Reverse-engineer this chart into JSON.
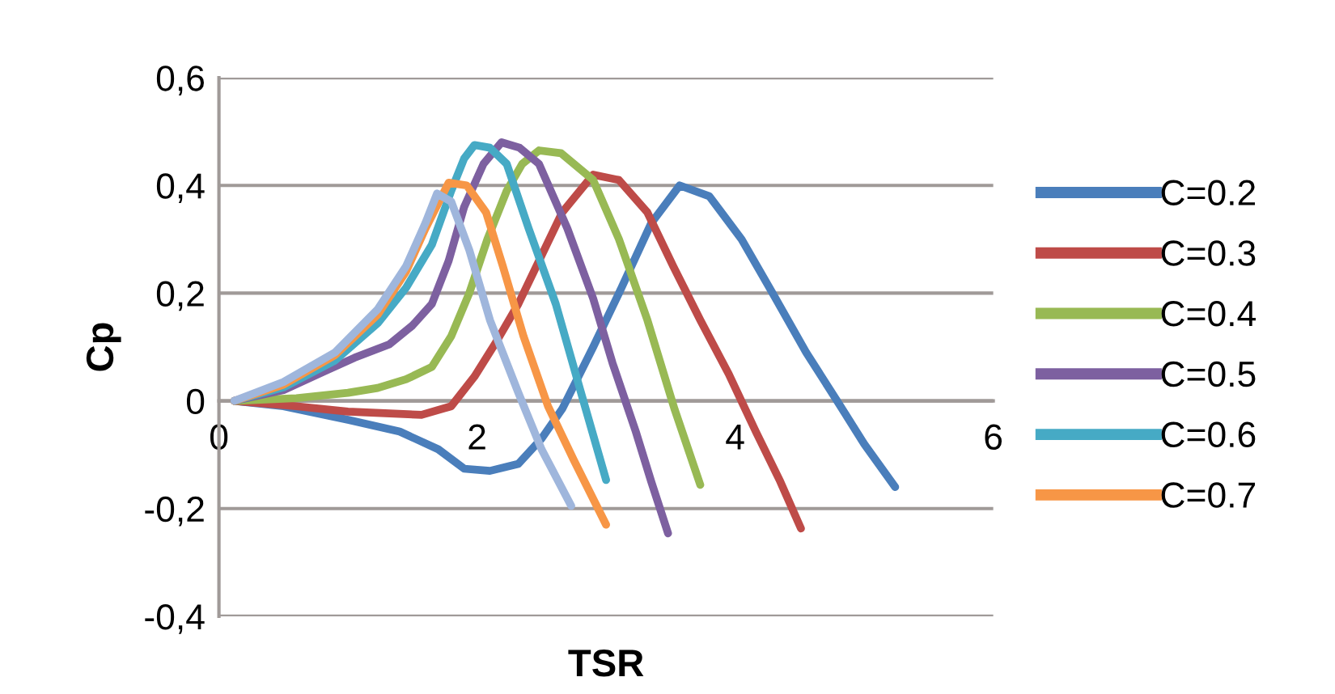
{
  "chart_data": {
    "type": "line",
    "xlabel": "TSR",
    "ylabel": "Cp",
    "xlim": [
      0,
      6
    ],
    "xticks": [
      0,
      2,
      4,
      6
    ],
    "ylim": [
      -0.4,
      0.6
    ],
    "yticks": [
      {
        "value": -0.4,
        "label": "-0,4"
      },
      {
        "value": -0.2,
        "label": "-0,2"
      },
      0,
      {
        "value": 0.2,
        "label": "0,2"
      },
      {
        "value": 0.4,
        "label": "0,4"
      },
      {
        "value": 0.6,
        "label": "0,6"
      }
    ],
    "grid": "y",
    "legend": "right",
    "marker": "none",
    "line_style": "solid",
    "series": [
      {
        "name": "C=0.2",
        "color": "#4a7ebb",
        "x": [
          0.12,
          0.5,
          1.0,
          1.4,
          1.7,
          1.9,
          2.1,
          2.32,
          2.5,
          2.66,
          2.9,
          3.1,
          3.35,
          3.57,
          3.8,
          4.05,
          4.29,
          4.55,
          4.79,
          5.0,
          5.24
        ],
        "values": [
          0,
          -0.01,
          -0.035,
          -0.057,
          -0.09,
          -0.126,
          -0.13,
          -0.117,
          -0.07,
          -0.015,
          0.1,
          0.2,
          0.33,
          0.4,
          0.38,
          0.3,
          0.2,
          0.09,
          0,
          -0.08,
          -0.16
        ]
      },
      {
        "name": "C=0.3",
        "color": "#be4b48",
        "x": [
          0.12,
          0.6,
          1.0,
          1.57,
          1.8,
          1.98,
          2.15,
          2.32,
          2.5,
          2.66,
          2.9,
          3.1,
          3.32,
          3.52,
          3.73,
          3.95,
          4.16,
          4.35,
          4.51
        ],
        "values": [
          0,
          -0.01,
          -0.02,
          -0.026,
          -0.01,
          0.045,
          0.11,
          0.18,
          0.27,
          0.35,
          0.42,
          0.41,
          0.35,
          0.25,
          0.15,
          0.05,
          -0.057,
          -0.15,
          -0.237
        ]
      },
      {
        "name": "C=0.4",
        "color": "#98b954",
        "x": [
          0.12,
          0.6,
          1.0,
          1.23,
          1.45,
          1.65,
          1.8,
          1.94,
          2.08,
          2.23,
          2.35,
          2.48,
          2.65,
          2.9,
          3.1,
          3.32,
          3.53,
          3.73
        ],
        "values": [
          0,
          0.005,
          0.015,
          0.024,
          0.04,
          0.063,
          0.12,
          0.2,
          0.3,
          0.39,
          0.44,
          0.465,
          0.46,
          0.41,
          0.3,
          0.15,
          -0.015,
          -0.156
        ]
      },
      {
        "name": "C=0.5",
        "color": "#7d60a0",
        "x": [
          0.12,
          0.5,
          0.81,
          1.05,
          1.32,
          1.5,
          1.65,
          1.78,
          1.9,
          2.05,
          2.19,
          2.33,
          2.48,
          2.7,
          2.9,
          3.05,
          3.23,
          3.35,
          3.48
        ],
        "values": [
          0,
          0.02,
          0.054,
          0.08,
          0.105,
          0.14,
          0.18,
          0.26,
          0.36,
          0.44,
          0.48,
          0.47,
          0.44,
          0.32,
          0.19,
          0.07,
          -0.057,
          -0.15,
          -0.246
        ]
      },
      {
        "name": "C=0.6",
        "color": "#46aac5",
        "x": [
          0.12,
          0.5,
          0.9,
          1.23,
          1.45,
          1.65,
          1.8,
          1.9,
          1.98,
          2.1,
          2.23,
          2.4,
          2.61,
          2.8,
          3.0
        ],
        "values": [
          0,
          0.025,
          0.075,
          0.144,
          0.21,
          0.29,
          0.39,
          0.45,
          0.475,
          0.47,
          0.44,
          0.32,
          0.18,
          0.02,
          -0.147
        ]
      },
      {
        "name": "C=0.7",
        "color": "#f79646",
        "x": [
          0.12,
          0.5,
          0.9,
          1.23,
          1.45,
          1.6,
          1.78,
          1.92,
          2.07,
          2.2,
          2.36,
          2.55,
          2.75,
          3.0
        ],
        "values": [
          0,
          0.03,
          0.085,
          0.16,
          0.24,
          0.32,
          0.405,
          0.4,
          0.35,
          0.25,
          0.12,
          -0.01,
          -0.11,
          -0.23
        ]
      },
      {
        "color": "#9fb6dc",
        "x": [
          0.12,
          0.5,
          0.9,
          1.23,
          1.45,
          1.6,
          1.69,
          1.8,
          1.94,
          2.1,
          2.32,
          2.5,
          2.73
        ],
        "values": [
          0,
          0.035,
          0.09,
          0.17,
          0.25,
          0.33,
          0.385,
          0.37,
          0.28,
          0.15,
          0.015,
          -0.09,
          -0.195
        ]
      }
    ]
  }
}
